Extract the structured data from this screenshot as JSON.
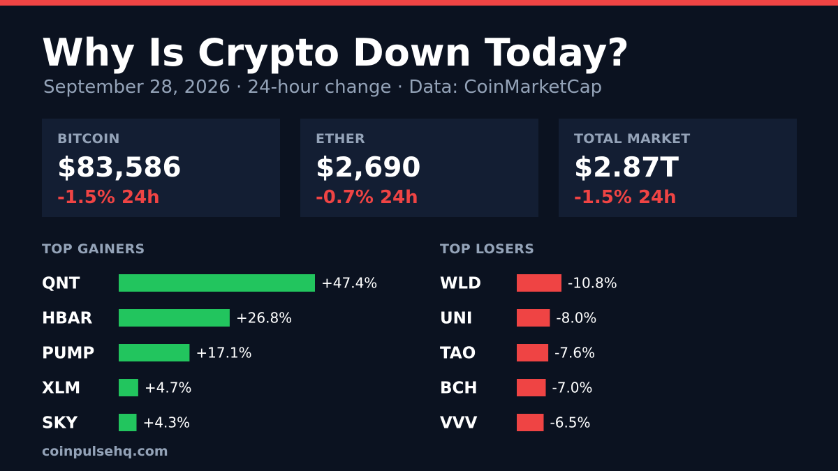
{
  "title": "Why Is Crypto Down Today?",
  "subtitle": "September 28, 2026  ·  24-hour change  ·  Data: CoinMarketCap",
  "cards": [
    {
      "label": "BITCOIN",
      "value": "$83,586",
      "change": "-1.5% 24h"
    },
    {
      "label": "ETHER",
      "value": "$2,690",
      "change": "-0.7% 24h"
    },
    {
      "label": "TOTAL MARKET",
      "value": "$2.87T",
      "change": "-1.5% 24h"
    }
  ],
  "colors": {
    "accent": "#ef4444",
    "gain": "#22c55e",
    "loss": "#ef4444",
    "background": "#0b1220",
    "card": "#131e33",
    "muted": "#94a3b8"
  },
  "chart_data": [
    {
      "type": "bar",
      "orientation": "horizontal",
      "title": "TOP GAINERS",
      "categories": [
        "QNT",
        "HBAR",
        "PUMP",
        "XLM",
        "SKY"
      ],
      "values": [
        47.4,
        26.8,
        17.1,
        4.7,
        4.3
      ],
      "labels": [
        "+47.4%",
        "+26.8%",
        "+17.1%",
        "+4.7%",
        "+4.3%"
      ],
      "grid": false
    },
    {
      "type": "bar",
      "orientation": "horizontal",
      "title": "TOP LOSERS",
      "categories": [
        "WLD",
        "UNI",
        "TAO",
        "BCH",
        "VVV"
      ],
      "values": [
        -10.8,
        -8.0,
        -7.6,
        -7.0,
        -6.5
      ],
      "labels": [
        "-10.8%",
        "-8.0%",
        "-7.6%",
        "-7.0%",
        "-6.5%"
      ],
      "grid": false
    }
  ],
  "footer": "coinpulsehq.com"
}
